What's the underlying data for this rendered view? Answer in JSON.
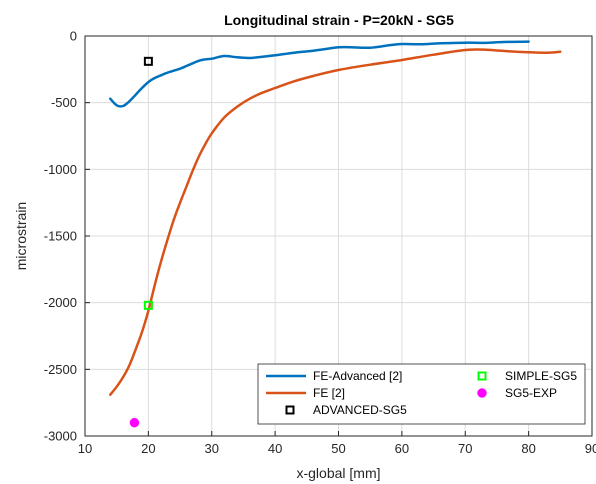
{
  "chart_data": {
    "type": "line",
    "title": "Longitudinal strain - P=20kN - SG5",
    "xlabel": "x-global [mm]",
    "ylabel": "microstrain",
    "xlim": [
      10,
      90
    ],
    "ylim": [
      -3000,
      0
    ],
    "xticks": [
      10,
      20,
      30,
      40,
      50,
      60,
      70,
      80,
      90
    ],
    "yticks": [
      0,
      -500,
      -1000,
      -1500,
      -2000,
      -2500,
      -3000
    ],
    "grid": true,
    "legend_position": "bottom-right",
    "series": [
      {
        "name": "FE-Advanced [2]",
        "kind": "line",
        "color": "#0072BD",
        "x": [
          14,
          15,
          16,
          17,
          18,
          19,
          20,
          21,
          22,
          23,
          24,
          25,
          26,
          27,
          28,
          29,
          30,
          32,
          34,
          36,
          38,
          40,
          43,
          46,
          50,
          52,
          55,
          58,
          60,
          63,
          66,
          70,
          73,
          76,
          80
        ],
        "y": [
          -470,
          -520,
          -525,
          -490,
          -440,
          -390,
          -345,
          -315,
          -295,
          -275,
          -260,
          -245,
          -225,
          -205,
          -185,
          -175,
          -170,
          -150,
          -160,
          -165,
          -155,
          -145,
          -125,
          -110,
          -85,
          -85,
          -88,
          -70,
          -60,
          -62,
          -55,
          -50,
          -52,
          -45,
          -42
        ]
      },
      {
        "name": "FE [2]",
        "kind": "line",
        "color": "#D95319",
        "x": [
          14,
          15,
          16,
          17,
          18,
          19,
          20,
          21,
          22,
          23,
          24,
          25,
          26,
          27,
          28,
          29,
          30,
          32,
          34,
          36,
          38,
          40,
          43,
          46,
          50,
          55,
          60,
          65,
          70,
          73,
          76,
          80,
          83,
          85
        ],
        "y": [
          -2690,
          -2630,
          -2560,
          -2470,
          -2350,
          -2220,
          -2060,
          -1870,
          -1690,
          -1530,
          -1380,
          -1250,
          -1130,
          -1010,
          -900,
          -810,
          -730,
          -610,
          -530,
          -470,
          -425,
          -390,
          -340,
          -300,
          -255,
          -215,
          -180,
          -140,
          -105,
          -102,
          -112,
          -122,
          -125,
          -118
        ]
      },
      {
        "name": "ADVANCED-SG5",
        "kind": "marker",
        "marker": "square",
        "color": "#000000",
        "x": [
          20
        ],
        "y": [
          -190
        ]
      },
      {
        "name": "SIMPLE-SG5",
        "kind": "marker",
        "marker": "square",
        "color": "#00FF00",
        "x": [
          20
        ],
        "y": [
          -2020
        ]
      },
      {
        "name": "SG5-EXP",
        "kind": "marker",
        "marker": "circle",
        "color": "#FF00FF",
        "x": [
          17.8
        ],
        "y": [
          -2900
        ]
      }
    ],
    "legend": [
      {
        "label": "FE-Advanced [2]",
        "series": 0
      },
      {
        "label": "SIMPLE-SG5",
        "series": 3
      },
      {
        "label": "FE [2]",
        "series": 1
      },
      {
        "label": "SG5-EXP",
        "series": 4
      },
      {
        "label": "ADVANCED-SG5",
        "series": 2
      }
    ]
  }
}
